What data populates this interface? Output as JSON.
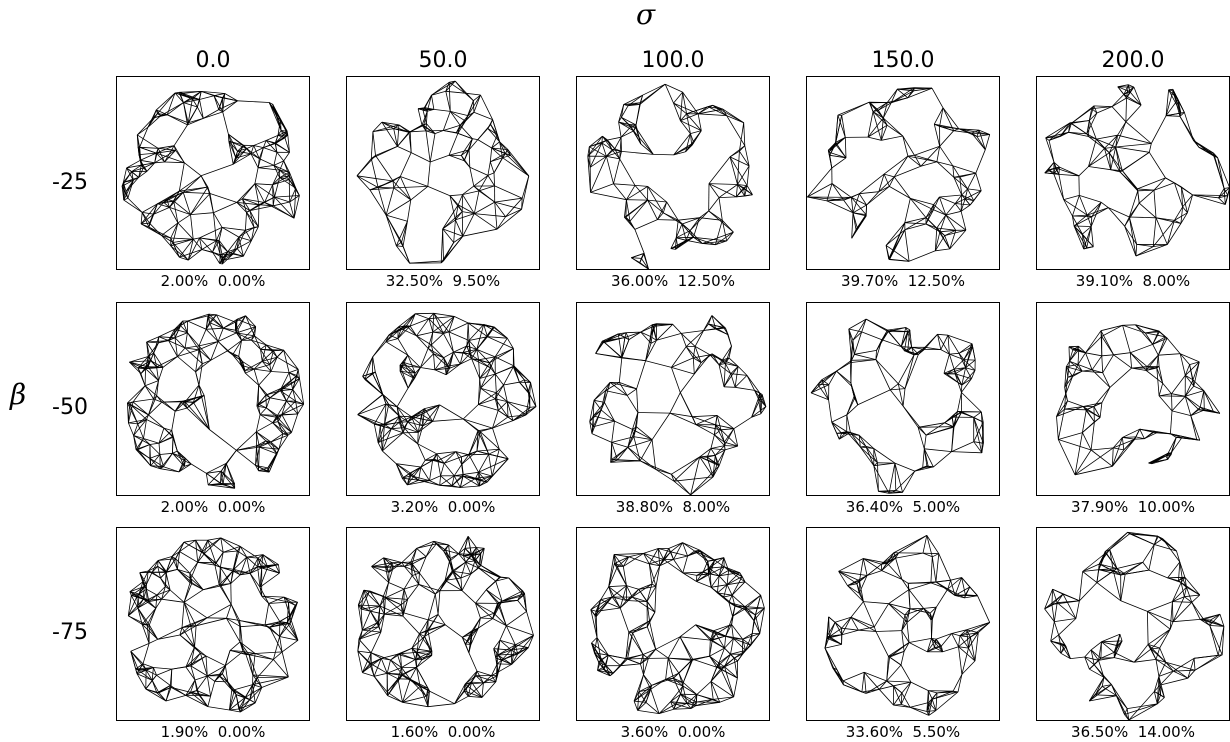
{
  "header": {
    "column_symbol": "σ",
    "row_symbol": "β"
  },
  "columns": [
    "0.0",
    "50.0",
    "100.0",
    "150.0",
    "200.0"
  ],
  "rows": [
    "-25",
    "-50",
    "-75"
  ],
  "captions": [
    [
      "2.00%  0.00%",
      "32.50%  9.50%",
      "36.00%  12.50%",
      "39.70%  12.50%",
      "39.10%  8.00%"
    ],
    [
      "2.00%  0.00%",
      "3.20%  0.00%",
      "38.80%  8.00%",
      "36.40%  5.00%",
      "37.90%  10.00%"
    ],
    [
      "1.90%  0.00%",
      "1.60%  0.00%",
      "3.60%  0.00%",
      "33.60%  5.50%",
      "36.50%  14.00%"
    ]
  ],
  "colors": {
    "line": "#000000",
    "background": "#ffffff"
  }
}
